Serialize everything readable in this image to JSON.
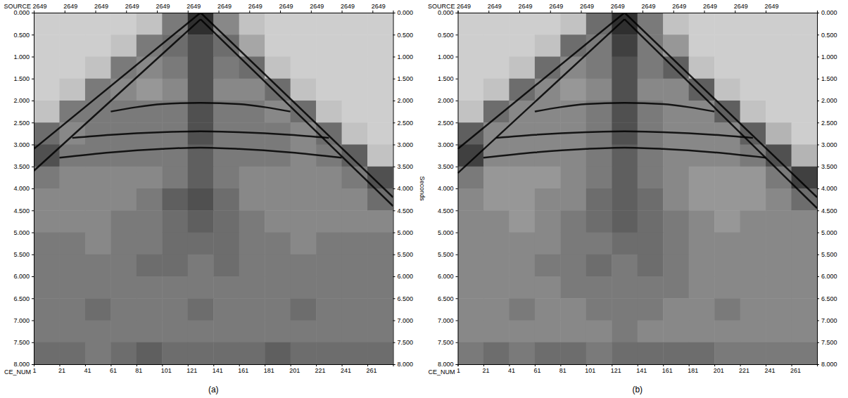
{
  "chart_data": [
    {
      "type": "seismic",
      "title": "(a)",
      "x_label": "CE_NUM",
      "top_axis_label": "SOURCE",
      "y_label": "Seconds",
      "xlim": [
        1,
        281
      ],
      "xticks": [
        1,
        21,
        41,
        61,
        81,
        101,
        121,
        141,
        161,
        181,
        201,
        221,
        241,
        261
      ],
      "x2ticks": [
        {
          "value": 1,
          "label": "2649"
        },
        {
          "value": 25,
          "label": "2649"
        },
        {
          "value": 49,
          "label": "2649"
        },
        {
          "value": 73,
          "label": "2649"
        },
        {
          "value": 97,
          "label": "2649"
        },
        {
          "value": 121,
          "label": "2649"
        },
        {
          "value": 145,
          "label": "2649"
        },
        {
          "value": 169,
          "label": "2649"
        },
        {
          "value": 193,
          "label": "2649"
        },
        {
          "value": 217,
          "label": "2649"
        },
        {
          "value": 241,
          "label": "2649"
        },
        {
          "value": 265,
          "label": "2649"
        }
      ],
      "ylim": [
        0,
        8
      ],
      "yticks": [
        {
          "value": 0,
          "label": "0.000"
        },
        {
          "value": 0.5,
          "label": "0.500"
        },
        {
          "value": 1,
          "label": "1.000"
        },
        {
          "value": 1.5,
          "label": "1.500"
        },
        {
          "value": 2,
          "label": "2.000"
        },
        {
          "value": 2.5,
          "label": "2.500"
        },
        {
          "value": 3,
          "label": "3.000"
        },
        {
          "value": 3.5,
          "label": "3.500"
        },
        {
          "value": 4,
          "label": "4.000"
        },
        {
          "value": 4.5,
          "label": "4.500"
        },
        {
          "value": 5,
          "label": "5.000"
        },
        {
          "value": 5.5,
          "label": "5.500"
        },
        {
          "value": 6,
          "label": "6.000"
        },
        {
          "value": 6.5,
          "label": "6.500"
        },
        {
          "value": 7,
          "label": "7.000"
        },
        {
          "value": 7.5,
          "label": "7.500"
        },
        {
          "value": 8,
          "label": "8.000"
        }
      ],
      "x_bins": [
        1,
        21,
        41,
        61,
        81,
        101,
        121,
        141,
        161,
        181,
        201,
        221,
        241,
        261,
        281
      ],
      "y_bins": [
        0,
        0.5,
        1,
        1.5,
        2,
        2.5,
        3,
        3.5,
        4,
        4.5,
        5,
        5.5,
        6,
        6.5,
        7,
        7.5,
        8
      ],
      "cells": [
        [
          0.3,
          0.3,
          0.3,
          0.3,
          0.35,
          0.6,
          0.85,
          0.55,
          0.35,
          0.3,
          0.3,
          0.3,
          0.3,
          0.3
        ],
        [
          0.3,
          0.3,
          0.3,
          0.35,
          0.6,
          0.65,
          0.75,
          0.65,
          0.45,
          0.3,
          0.3,
          0.3,
          0.3,
          0.3
        ],
        [
          0.3,
          0.3,
          0.35,
          0.6,
          0.55,
          0.6,
          0.75,
          0.6,
          0.65,
          0.35,
          0.3,
          0.3,
          0.3,
          0.3
        ],
        [
          0.3,
          0.35,
          0.6,
          0.55,
          0.5,
          0.55,
          0.75,
          0.55,
          0.55,
          0.65,
          0.35,
          0.3,
          0.3,
          0.3
        ],
        [
          0.35,
          0.6,
          0.6,
          0.6,
          0.6,
          0.6,
          0.75,
          0.6,
          0.6,
          0.55,
          0.65,
          0.35,
          0.3,
          0.3
        ],
        [
          0.65,
          0.55,
          0.6,
          0.6,
          0.6,
          0.6,
          0.75,
          0.6,
          0.6,
          0.6,
          0.55,
          0.65,
          0.35,
          0.3
        ],
        [
          0.75,
          0.6,
          0.6,
          0.6,
          0.6,
          0.6,
          0.7,
          0.6,
          0.6,
          0.6,
          0.55,
          0.6,
          0.7,
          0.35
        ],
        [
          0.6,
          0.55,
          0.55,
          0.55,
          0.55,
          0.6,
          0.7,
          0.6,
          0.55,
          0.55,
          0.55,
          0.55,
          0.6,
          0.75
        ],
        [
          0.55,
          0.55,
          0.55,
          0.55,
          0.6,
          0.7,
          0.75,
          0.65,
          0.55,
          0.55,
          0.55,
          0.55,
          0.55,
          0.65
        ],
        [
          0.55,
          0.55,
          0.55,
          0.6,
          0.6,
          0.65,
          0.7,
          0.65,
          0.6,
          0.55,
          0.55,
          0.55,
          0.55,
          0.55
        ],
        [
          0.6,
          0.6,
          0.55,
          0.6,
          0.6,
          0.65,
          0.65,
          0.65,
          0.6,
          0.6,
          0.55,
          0.6,
          0.6,
          0.6
        ],
        [
          0.6,
          0.6,
          0.6,
          0.6,
          0.65,
          0.65,
          0.6,
          0.65,
          0.6,
          0.6,
          0.6,
          0.6,
          0.6,
          0.6
        ],
        [
          0.6,
          0.6,
          0.6,
          0.6,
          0.6,
          0.6,
          0.6,
          0.6,
          0.6,
          0.6,
          0.6,
          0.6,
          0.6,
          0.6
        ],
        [
          0.6,
          0.6,
          0.65,
          0.6,
          0.6,
          0.6,
          0.65,
          0.6,
          0.6,
          0.6,
          0.65,
          0.6,
          0.6,
          0.6
        ],
        [
          0.6,
          0.6,
          0.6,
          0.6,
          0.6,
          0.6,
          0.6,
          0.6,
          0.6,
          0.6,
          0.6,
          0.6,
          0.6,
          0.6
        ],
        [
          0.65,
          0.65,
          0.6,
          0.65,
          0.7,
          0.65,
          0.65,
          0.65,
          0.65,
          0.7,
          0.65,
          0.65,
          0.65,
          0.65
        ]
      ],
      "series": [
        {
          "type": "line",
          "color": "#000000",
          "x": [
            1,
            131
          ],
          "values": [
            3.1,
            0
          ]
        },
        {
          "type": "line",
          "color": "#000000",
          "x": [
            1,
            131
          ],
          "values": [
            3.6,
            0.15
          ]
        },
        {
          "type": "line",
          "color": "#000000",
          "x": [
            131,
            281
          ],
          "values": [
            0,
            4.2
          ]
        },
        {
          "type": "line",
          "color": "#000000",
          "x": [
            131,
            281
          ],
          "values": [
            0.15,
            4.4
          ]
        },
        {
          "type": "line",
          "color": "#000000",
          "x": [
            61,
            81,
            101,
            131,
            161,
            181,
            201
          ],
          "values": [
            2.25,
            2.15,
            2.08,
            2.05,
            2.08,
            2.15,
            2.25
          ]
        },
        {
          "type": "line",
          "color": "#000000",
          "x": [
            31,
            61,
            101,
            131,
            161,
            201,
            231
          ],
          "values": [
            2.85,
            2.78,
            2.72,
            2.7,
            2.72,
            2.78,
            2.85
          ]
        },
        {
          "type": "line",
          "color": "#000000",
          "x": [
            21,
            61,
            101,
            131,
            161,
            201,
            241
          ],
          "values": [
            3.3,
            3.18,
            3.1,
            3.07,
            3.1,
            3.18,
            3.3
          ]
        }
      ]
    },
    {
      "type": "seismic",
      "title": "(b)",
      "x_label": "CE_NUM",
      "top_axis_label": "SOURCE",
      "xlim": [
        1,
        281
      ],
      "xticks": [
        1,
        21,
        41,
        61,
        81,
        101,
        121,
        141,
        161,
        181,
        201,
        221,
        241,
        261
      ],
      "x2ticks": [
        {
          "value": 1,
          "label": "2649"
        },
        {
          "value": 25,
          "label": "2649"
        },
        {
          "value": 49,
          "label": "2649"
        },
        {
          "value": 73,
          "label": "2649"
        },
        {
          "value": 97,
          "label": "2649"
        },
        {
          "value": 121,
          "label": "2649"
        },
        {
          "value": 145,
          "label": "2649"
        },
        {
          "value": 169,
          "label": "2649"
        },
        {
          "value": 193,
          "label": "2649"
        },
        {
          "value": 217,
          "label": "2649"
        },
        {
          "value": 241,
          "label": "2649"
        }
      ],
      "ylim": [
        0,
        8
      ],
      "yticks": [
        {
          "value": 0,
          "label": "0.000"
        },
        {
          "value": 0.5,
          "label": "0.500"
        },
        {
          "value": 1,
          "label": "1.000"
        },
        {
          "value": 1.5,
          "label": "1.500"
        },
        {
          "value": 2,
          "label": "2.000"
        },
        {
          "value": 2.5,
          "label": "2.500"
        },
        {
          "value": 3,
          "label": "3.000"
        },
        {
          "value": 3.5,
          "label": "3.500"
        },
        {
          "value": 4,
          "label": "4.000"
        },
        {
          "value": 4.5,
          "label": "4.500"
        },
        {
          "value": 5,
          "label": "5.000"
        },
        {
          "value": 5.5,
          "label": "5.500"
        },
        {
          "value": 6,
          "label": "6.000"
        },
        {
          "value": 6.5,
          "label": "6.500"
        },
        {
          "value": 7,
          "label": "7.000"
        },
        {
          "value": 7.5,
          "label": "7.500"
        },
        {
          "value": 8,
          "label": "8.000"
        }
      ],
      "x_bins": [
        1,
        21,
        41,
        61,
        81,
        101,
        121,
        141,
        161,
        181,
        201,
        221,
        241,
        261,
        281
      ],
      "y_bins": [
        0,
        0.5,
        1,
        1.5,
        2,
        2.5,
        3,
        3.5,
        4,
        4.5,
        5,
        5.5,
        6,
        6.5,
        7,
        7.5,
        8
      ],
      "cells": [
        [
          0.3,
          0.3,
          0.3,
          0.3,
          0.35,
          0.65,
          0.85,
          0.6,
          0.35,
          0.3,
          0.3,
          0.3,
          0.3,
          0.3
        ],
        [
          0.3,
          0.3,
          0.3,
          0.35,
          0.65,
          0.6,
          0.8,
          0.6,
          0.5,
          0.3,
          0.3,
          0.3,
          0.3,
          0.3
        ],
        [
          0.3,
          0.3,
          0.35,
          0.65,
          0.55,
          0.6,
          0.75,
          0.6,
          0.7,
          0.35,
          0.3,
          0.3,
          0.3,
          0.3
        ],
        [
          0.3,
          0.35,
          0.65,
          0.55,
          0.5,
          0.55,
          0.75,
          0.55,
          0.55,
          0.7,
          0.35,
          0.3,
          0.3,
          0.3
        ],
        [
          0.35,
          0.65,
          0.55,
          0.55,
          0.55,
          0.6,
          0.75,
          0.6,
          0.55,
          0.55,
          0.7,
          0.35,
          0.3,
          0.3
        ],
        [
          0.7,
          0.55,
          0.55,
          0.55,
          0.55,
          0.6,
          0.75,
          0.6,
          0.55,
          0.55,
          0.55,
          0.7,
          0.4,
          0.3
        ],
        [
          0.8,
          0.55,
          0.55,
          0.55,
          0.55,
          0.6,
          0.7,
          0.6,
          0.55,
          0.55,
          0.55,
          0.6,
          0.75,
          0.4
        ],
        [
          0.6,
          0.5,
          0.5,
          0.5,
          0.55,
          0.6,
          0.7,
          0.6,
          0.55,
          0.5,
          0.5,
          0.5,
          0.6,
          0.8
        ],
        [
          0.55,
          0.5,
          0.5,
          0.55,
          0.55,
          0.65,
          0.7,
          0.65,
          0.55,
          0.5,
          0.5,
          0.5,
          0.55,
          0.65
        ],
        [
          0.55,
          0.55,
          0.5,
          0.55,
          0.6,
          0.65,
          0.7,
          0.65,
          0.6,
          0.55,
          0.5,
          0.55,
          0.55,
          0.55
        ],
        [
          0.55,
          0.55,
          0.55,
          0.55,
          0.6,
          0.6,
          0.65,
          0.65,
          0.6,
          0.55,
          0.55,
          0.55,
          0.55,
          0.55
        ],
        [
          0.55,
          0.55,
          0.55,
          0.6,
          0.6,
          0.65,
          0.6,
          0.65,
          0.6,
          0.55,
          0.55,
          0.55,
          0.55,
          0.55
        ],
        [
          0.55,
          0.55,
          0.55,
          0.55,
          0.6,
          0.6,
          0.6,
          0.6,
          0.6,
          0.55,
          0.55,
          0.55,
          0.55,
          0.55
        ],
        [
          0.55,
          0.55,
          0.6,
          0.55,
          0.55,
          0.6,
          0.6,
          0.6,
          0.55,
          0.55,
          0.6,
          0.55,
          0.55,
          0.55
        ],
        [
          0.55,
          0.55,
          0.55,
          0.55,
          0.55,
          0.55,
          0.6,
          0.55,
          0.55,
          0.55,
          0.55,
          0.55,
          0.55,
          0.55
        ],
        [
          0.6,
          0.65,
          0.6,
          0.65,
          0.65,
          0.6,
          0.65,
          0.65,
          0.65,
          0.65,
          0.6,
          0.6,
          0.6,
          0.6
        ]
      ],
      "series": [
        {
          "type": "line",
          "color": "#000000",
          "x": [
            1,
            131
          ],
          "values": [
            3.1,
            0
          ]
        },
        {
          "type": "line",
          "color": "#000000",
          "x": [
            1,
            131
          ],
          "values": [
            3.65,
            0.15
          ]
        },
        {
          "type": "line",
          "color": "#000000",
          "x": [
            131,
            281
          ],
          "values": [
            0,
            4.2
          ]
        },
        {
          "type": "line",
          "color": "#000000",
          "x": [
            131,
            281
          ],
          "values": [
            0.15,
            4.45
          ]
        },
        {
          "type": "line",
          "color": "#000000",
          "x": [
            61,
            81,
            101,
            131,
            161,
            181,
            201
          ],
          "values": [
            2.25,
            2.15,
            2.08,
            2.05,
            2.08,
            2.15,
            2.25
          ]
        },
        {
          "type": "line",
          "color": "#000000",
          "x": [
            31,
            61,
            101,
            131,
            161,
            201,
            231
          ],
          "values": [
            2.85,
            2.78,
            2.72,
            2.7,
            2.72,
            2.78,
            2.85
          ]
        },
        {
          "type": "line",
          "color": "#000000",
          "x": [
            21,
            61,
            101,
            131,
            161,
            201,
            241
          ],
          "values": [
            3.3,
            3.18,
            3.1,
            3.07,
            3.1,
            3.18,
            3.3
          ]
        }
      ]
    }
  ]
}
